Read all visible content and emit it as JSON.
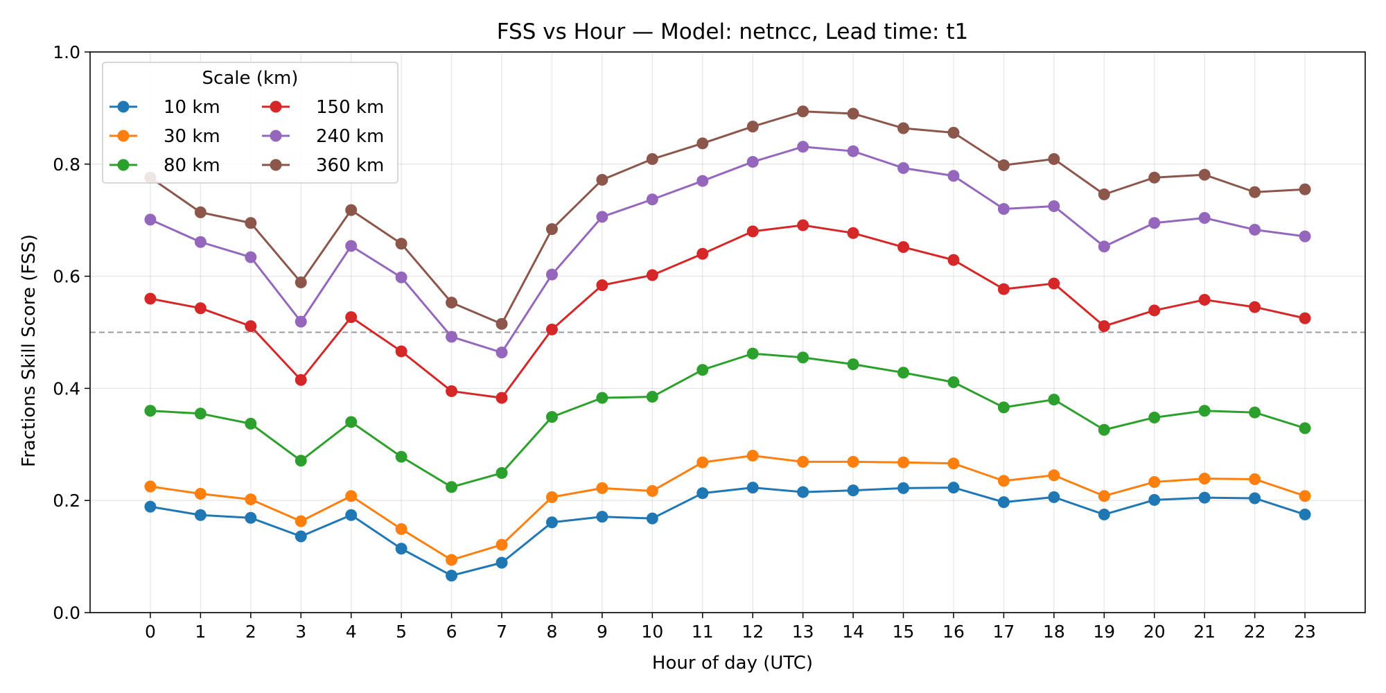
{
  "chart_data": {
    "type": "line",
    "title": "FSS vs Hour — Model: netncc, Lead time: t1",
    "xlabel": "Hour of day (UTC)",
    "ylabel": "Fractions Skill Score (FSS)",
    "xlim": [
      -1.2,
      24.2
    ],
    "ylim": [
      0.0,
      1.0
    ],
    "x": [
      0,
      1,
      2,
      3,
      4,
      5,
      6,
      7,
      8,
      9,
      10,
      11,
      12,
      13,
      14,
      15,
      16,
      17,
      18,
      19,
      20,
      21,
      22,
      23
    ],
    "x_tick_labels": [
      "0",
      "1",
      "2",
      "3",
      "4",
      "5",
      "6",
      "7",
      "8",
      "9",
      "10",
      "11",
      "12",
      "13",
      "14",
      "15",
      "16",
      "17",
      "18",
      "19",
      "20",
      "21",
      "22",
      "23"
    ],
    "y_ticks": [
      0.0,
      0.2,
      0.4,
      0.6,
      0.8,
      1.0
    ],
    "y_tick_labels": [
      "0.0",
      "0.2",
      "0.4",
      "0.6",
      "0.8",
      "1.0"
    ],
    "grid": true,
    "reference_line": {
      "y": 0.5,
      "style": "dashed",
      "color": "#999999"
    },
    "legend": {
      "title": "Scale (km)",
      "placement": "top-left",
      "columns": 2
    },
    "series": [
      {
        "name": "10 km",
        "color": "#1f77b4",
        "values": [
          0.189,
          0.174,
          0.169,
          0.136,
          0.174,
          0.114,
          0.066,
          0.089,
          0.161,
          0.171,
          0.168,
          0.213,
          0.223,
          0.215,
          0.218,
          0.222,
          0.223,
          0.197,
          0.206,
          0.175,
          0.201,
          0.205,
          0.204,
          0.175
        ]
      },
      {
        "name": "30 km",
        "color": "#ff7f0e",
        "values": [
          0.225,
          0.212,
          0.202,
          0.163,
          0.208,
          0.149,
          0.094,
          0.121,
          0.206,
          0.222,
          0.217,
          0.268,
          0.28,
          0.269,
          0.269,
          0.268,
          0.266,
          0.235,
          0.245,
          0.208,
          0.233,
          0.239,
          0.238,
          0.208
        ]
      },
      {
        "name": "80 km",
        "color": "#2ca02c",
        "values": [
          0.36,
          0.355,
          0.337,
          0.271,
          0.34,
          0.278,
          0.224,
          0.249,
          0.349,
          0.383,
          0.385,
          0.433,
          0.462,
          0.455,
          0.443,
          0.428,
          0.411,
          0.366,
          0.38,
          0.326,
          0.348,
          0.36,
          0.357,
          0.329
        ]
      },
      {
        "name": "150 km",
        "color": "#d62728",
        "values": [
          0.56,
          0.543,
          0.511,
          0.415,
          0.527,
          0.466,
          0.395,
          0.383,
          0.505,
          0.584,
          0.602,
          0.64,
          0.68,
          0.691,
          0.677,
          0.652,
          0.629,
          0.577,
          0.587,
          0.511,
          0.539,
          0.558,
          0.545,
          0.525
        ]
      },
      {
        "name": "240 km",
        "color": "#9467bd",
        "values": [
          0.701,
          0.661,
          0.634,
          0.519,
          0.654,
          0.598,
          0.492,
          0.464,
          0.603,
          0.706,
          0.737,
          0.77,
          0.804,
          0.831,
          0.823,
          0.793,
          0.779,
          0.72,
          0.725,
          0.653,
          0.695,
          0.704,
          0.683,
          0.671
        ]
      },
      {
        "name": "360 km",
        "color": "#8c564b",
        "values": [
          0.776,
          0.714,
          0.695,
          0.589,
          0.718,
          0.658,
          0.553,
          0.515,
          0.684,
          0.772,
          0.809,
          0.837,
          0.867,
          0.894,
          0.89,
          0.864,
          0.856,
          0.798,
          0.809,
          0.746,
          0.776,
          0.781,
          0.75,
          0.755
        ]
      }
    ]
  }
}
